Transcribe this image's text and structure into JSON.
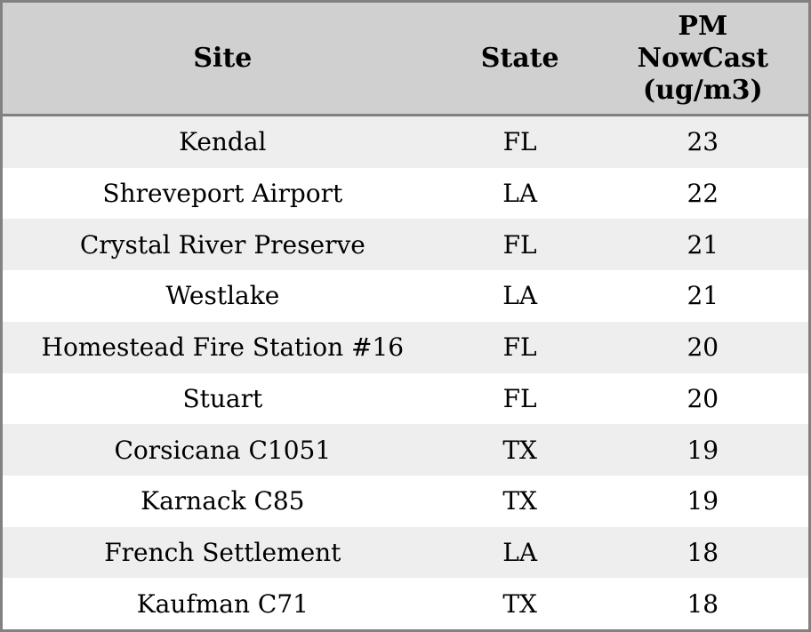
{
  "table_display": {
    "headers": [
      "Site",
      "State",
      "PM\nNowCast\n(ug/m3)"
    ]
  },
  "colors": {
    "header_bg": "#d0d0d0",
    "row_stripe_bg": "#eeeeee",
    "row_plain_bg": "#ffffff",
    "border": "#818181",
    "text": "#000000"
  },
  "chart_data": {
    "type": "table",
    "title": "",
    "columns": [
      "Site",
      "State",
      "PM NowCast (ug/m3)"
    ],
    "rows": [
      [
        "Kendal",
        "FL",
        23
      ],
      [
        "Shreveport Airport",
        "LA",
        22
      ],
      [
        "Crystal River Preserve",
        "FL",
        21
      ],
      [
        "Westlake",
        "LA",
        21
      ],
      [
        "Homestead Fire Station #16",
        "FL",
        20
      ],
      [
        "Stuart",
        "FL",
        20
      ],
      [
        "Corsicana C1051",
        "TX",
        19
      ],
      [
        "Karnack C85",
        "TX",
        19
      ],
      [
        "French Settlement",
        "LA",
        18
      ],
      [
        "Kaufman C71",
        "TX",
        18
      ]
    ],
    "layout_hints": {
      "header_lines_pm_column": [
        "PM",
        "NowCast",
        "(ug/m3)"
      ],
      "striped_rows": "odd data rows shaded",
      "alignment": "all cells centered",
      "gridlines": "horizontal separator under header only"
    }
  }
}
